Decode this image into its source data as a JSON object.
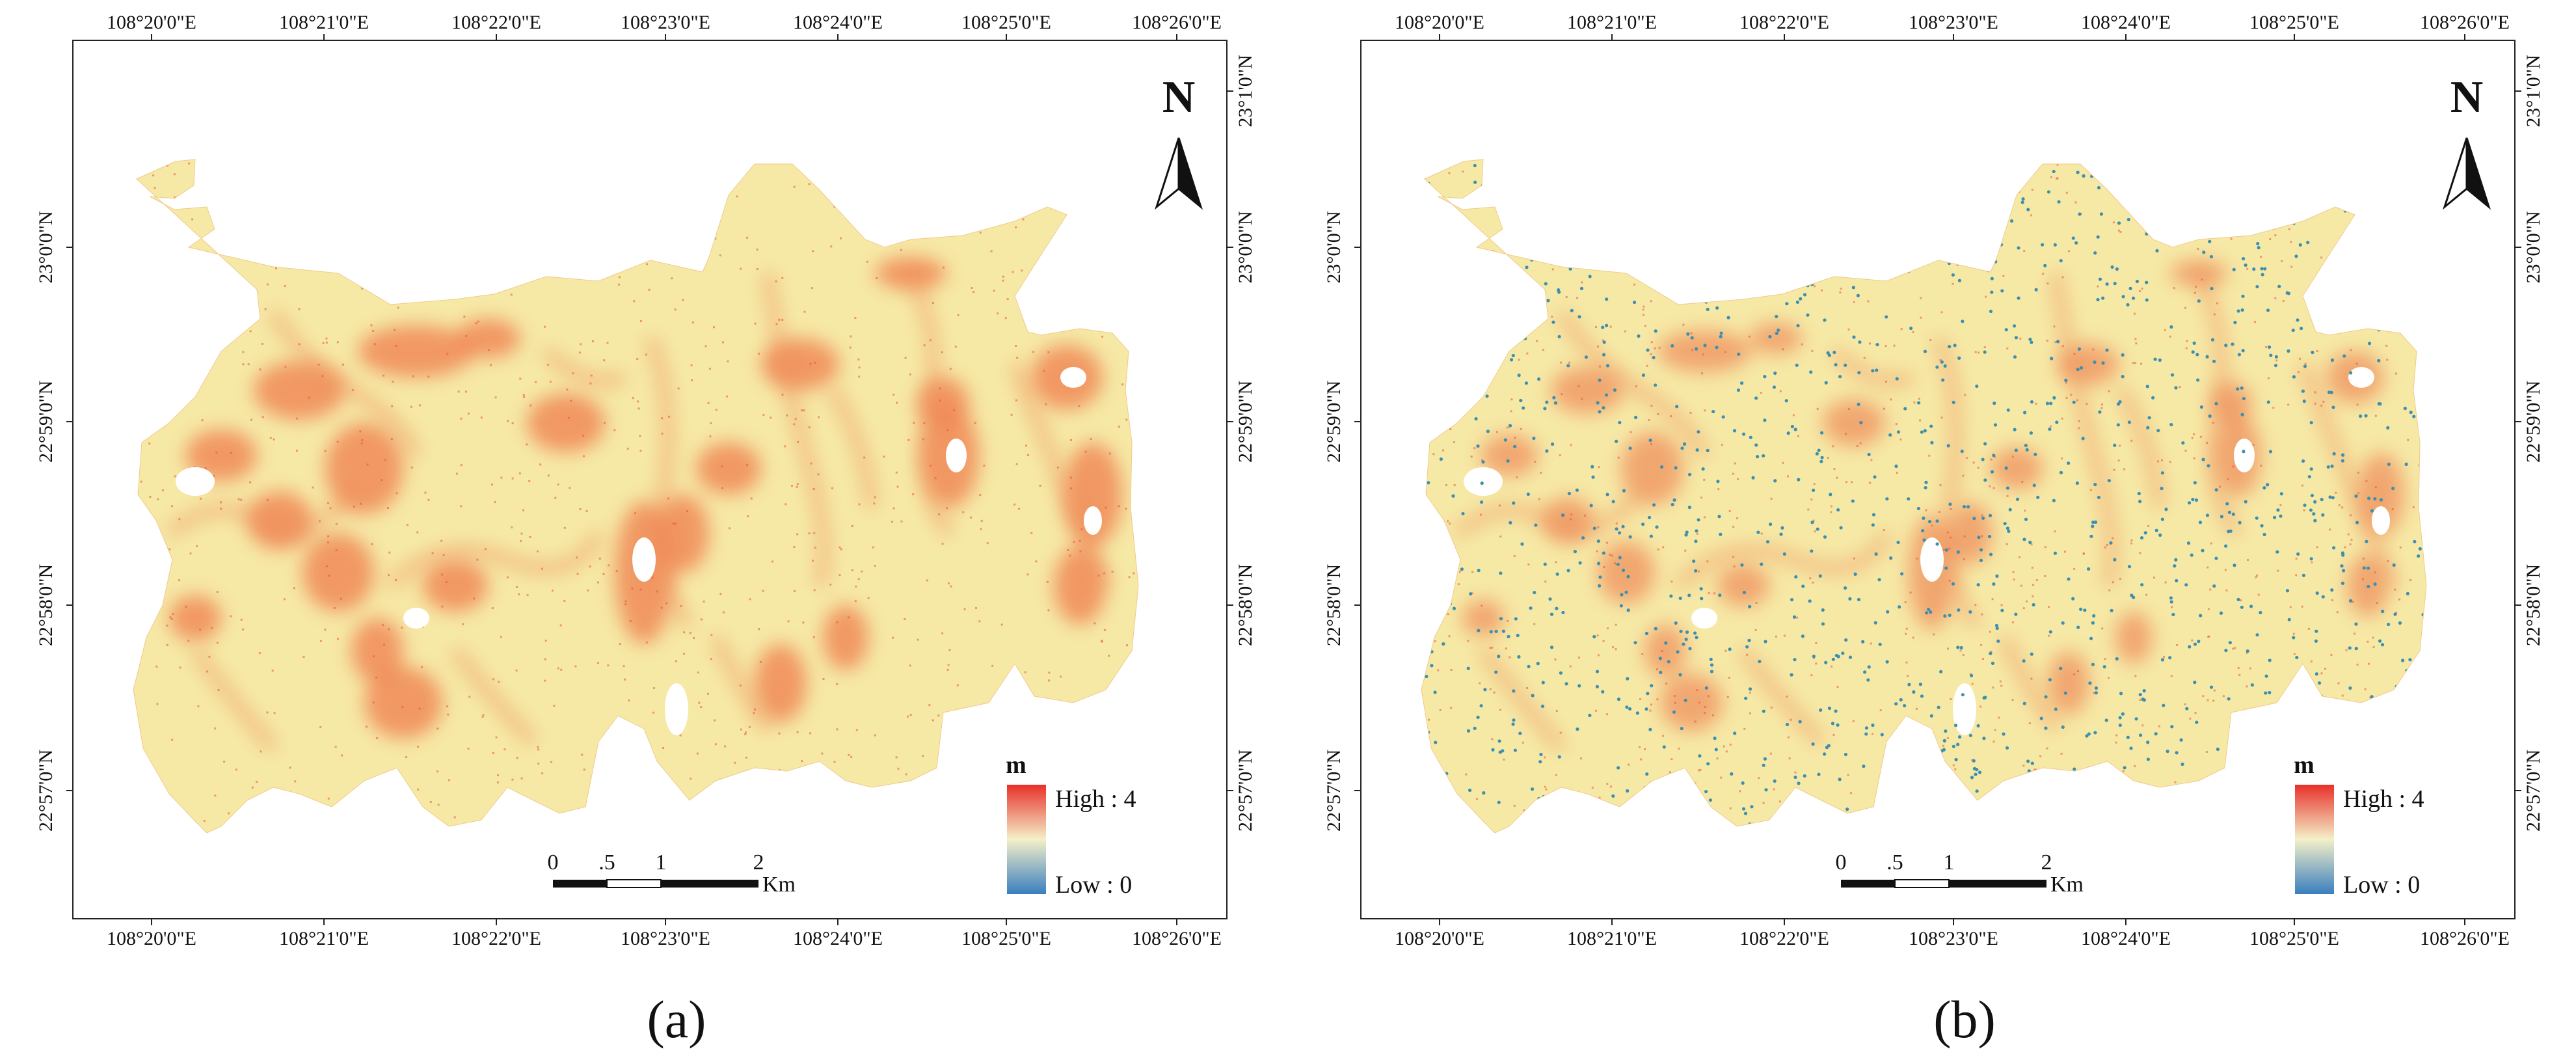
{
  "figure": {
    "panels": [
      {
        "id": "a",
        "caption": "(a)",
        "top_labels": [
          "108°20'0\"E",
          "108°21'0\"E",
          "108°22'0\"E",
          "108°23'0\"E",
          "108°24'0\"E",
          "108°25'0\"E",
          "108°26'0\"E"
        ],
        "bottom_labels": [
          "108°20'0\"E",
          "108°21'0\"E",
          "108°22'0\"E",
          "108°23'0\"E",
          "108°24'0\"E",
          "108°25'0\"E",
          "108°26'0\"E"
        ],
        "left_labels": [
          "23°0'0\"N",
          "22°59'0\"N",
          "22°58'0\"N",
          "22°57'0\"N"
        ],
        "right_labels": [
          "23°1'0\"N",
          "23°0'0\"N",
          "22°59'0\"N",
          "22°58'0\"N",
          "22°57'0\"N"
        ],
        "north_label": "N",
        "legend": {
          "title": "m",
          "high": "High : 4",
          "low": "Low : 0"
        },
        "scale_bar": {
          "ticks": [
            "0",
            ".5",
            "1",
            "2"
          ],
          "unit": "Km"
        },
        "point_overlay": false
      },
      {
        "id": "b",
        "caption": "(b)",
        "top_labels": [
          "108°20'0\"E",
          "108°21'0\"E",
          "108°22'0\"E",
          "108°23'0\"E",
          "108°24'0\"E",
          "108°25'0\"E",
          "108°26'0\"E"
        ],
        "bottom_labels": [
          "108°20'0\"E",
          "108°21'0\"E",
          "108°22'0\"E",
          "108°23'0\"E",
          "108°24'0\"E",
          "108°25'0\"E",
          "108°26'0\"E"
        ],
        "left_labels": [
          "23°0'0\"N",
          "22°59'0\"N",
          "22°58'0\"N",
          "22°57'0\"N"
        ],
        "right_labels": [
          "23°1'0\"N",
          "23°0'0\"N",
          "22°59'0\"N",
          "22°58'0\"N",
          "22°57'0\"N"
        ],
        "north_label": "N",
        "legend": {
          "title": "m",
          "high": "High : 4",
          "low": "Low : 0"
        },
        "scale_bar": {
          "ticks": [
            "0",
            ".5",
            "1",
            "2"
          ],
          "unit": "Km"
        },
        "point_overlay": true
      }
    ],
    "colors": {
      "ramp_high": "#e8302a",
      "ramp_mid": "#f4f0c8",
      "ramp_low": "#3a7fbf",
      "base_fill": "#f6e9a6",
      "hot_fill": "#f08a58",
      "point_color": "#3d8fb0"
    }
  }
}
